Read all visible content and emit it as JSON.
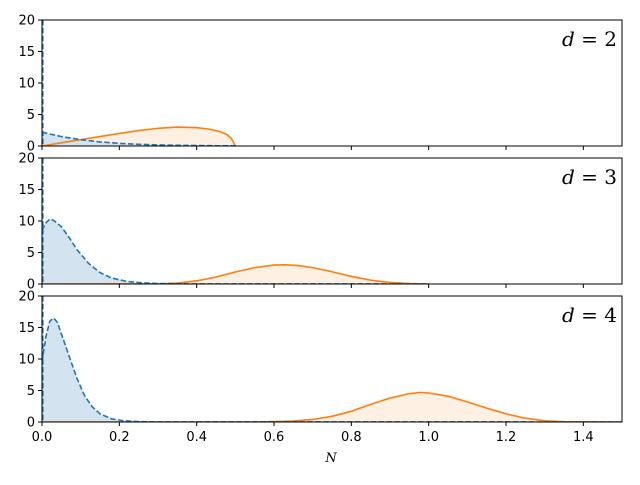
{
  "chart_data": {
    "type": "area",
    "xlabel": "N",
    "xlim": [
      0,
      1.5
    ],
    "xticks": [
      "0.0",
      "0.2",
      "0.4",
      "0.6",
      "0.8",
      "1.0",
      "1.2",
      "1.4"
    ],
    "shared_x": true,
    "grid": false,
    "colors": {
      "dashed_series": "#1f77b4",
      "solid_series": "#ff7f0e",
      "dashed_fill": "#d3e3ef",
      "solid_fill": "#fff0e4",
      "axes": "#000000"
    },
    "panels": [
      {
        "label": "d = 2",
        "label_var": "d",
        "label_value": "2",
        "ylim": [
          0,
          20
        ],
        "yticks": [
          "0",
          "5",
          "10",
          "15",
          "20"
        ],
        "series": [
          {
            "style": "dashed",
            "filled": true,
            "x": [
              0.0,
              0.02,
              0.05,
              0.1,
              0.15,
              0.2,
              0.25,
              0.3,
              0.35,
              0.4,
              0.45,
              0.5
            ],
            "y": [
              2.2,
              1.9,
              1.5,
              1.0,
              0.65,
              0.42,
              0.27,
              0.17,
              0.11,
              0.07,
              0.04,
              0.02
            ]
          },
          {
            "style": "solid",
            "filled": true,
            "x": [
              0.0,
              0.05,
              0.1,
              0.15,
              0.2,
              0.25,
              0.3,
              0.35,
              0.4,
              0.43,
              0.46,
              0.48,
              0.49,
              0.5
            ],
            "y": [
              0.0,
              0.5,
              1.0,
              1.5,
              2.0,
              2.45,
              2.8,
              3.0,
              2.9,
              2.7,
              2.3,
              1.75,
              1.2,
              0.0
            ]
          }
        ],
        "spike_at_zero": true
      },
      {
        "label": "d = 3",
        "label_var": "d",
        "label_value": "3",
        "ylim": [
          0,
          20
        ],
        "yticks": [
          "0",
          "5",
          "10",
          "15",
          "20"
        ],
        "series": [
          {
            "style": "dashed",
            "filled": true,
            "x": [
              0.0,
              0.01,
              0.02,
              0.03,
              0.05,
              0.07,
              0.09,
              0.12,
              0.15,
              0.18,
              0.22,
              0.26,
              0.3,
              0.35,
              0.4,
              1.0
            ],
            "y": [
              8.5,
              9.7,
              10.3,
              10.1,
              9.1,
              7.4,
              5.5,
              3.3,
              1.8,
              0.95,
              0.4,
              0.18,
              0.08,
              0.03,
              0.01,
              0.0
            ]
          },
          {
            "style": "solid",
            "filled": true,
            "x": [
              0.0,
              0.3,
              0.35,
              0.4,
              0.45,
              0.5,
              0.55,
              0.6,
              0.63,
              0.66,
              0.7,
              0.75,
              0.8,
              0.85,
              0.9,
              0.95,
              1.0
            ],
            "y": [
              0.0,
              0.02,
              0.15,
              0.5,
              1.1,
              1.9,
              2.6,
              3.0,
              3.05,
              2.95,
              2.6,
              1.95,
              1.2,
              0.6,
              0.25,
              0.07,
              0.0
            ]
          }
        ],
        "spike_at_zero": true
      },
      {
        "label": "d = 4",
        "label_var": "d",
        "label_value": "4",
        "ylim": [
          0,
          20
        ],
        "yticks": [
          "0",
          "5",
          "10",
          "15",
          "20"
        ],
        "series": [
          {
            "style": "dashed",
            "filled": true,
            "x": [
              0.0,
              0.01,
              0.02,
              0.03,
              0.04,
              0.05,
              0.07,
              0.09,
              0.11,
              0.13,
              0.15,
              0.18,
              0.21,
              0.25,
              0.3,
              1.5
            ],
            "y": [
              9.5,
              13.5,
              16.0,
              16.5,
              15.8,
              14.0,
              10.5,
              7.0,
              4.2,
              2.4,
              1.3,
              0.5,
              0.2,
              0.06,
              0.01,
              0.0
            ]
          },
          {
            "style": "solid",
            "filled": true,
            "x": [
              0.0,
              0.55,
              0.65,
              0.7,
              0.75,
              0.8,
              0.85,
              0.9,
              0.95,
              0.98,
              1.0,
              1.05,
              1.1,
              1.15,
              1.2,
              1.25,
              1.3,
              1.35,
              1.5
            ],
            "y": [
              0.0,
              0.0,
              0.15,
              0.4,
              0.9,
              1.7,
              2.8,
              3.8,
              4.5,
              4.7,
              4.6,
              4.1,
              3.2,
              2.2,
              1.3,
              0.6,
              0.2,
              0.05,
              0.0
            ]
          }
        ],
        "spike_at_zero": true
      }
    ]
  }
}
